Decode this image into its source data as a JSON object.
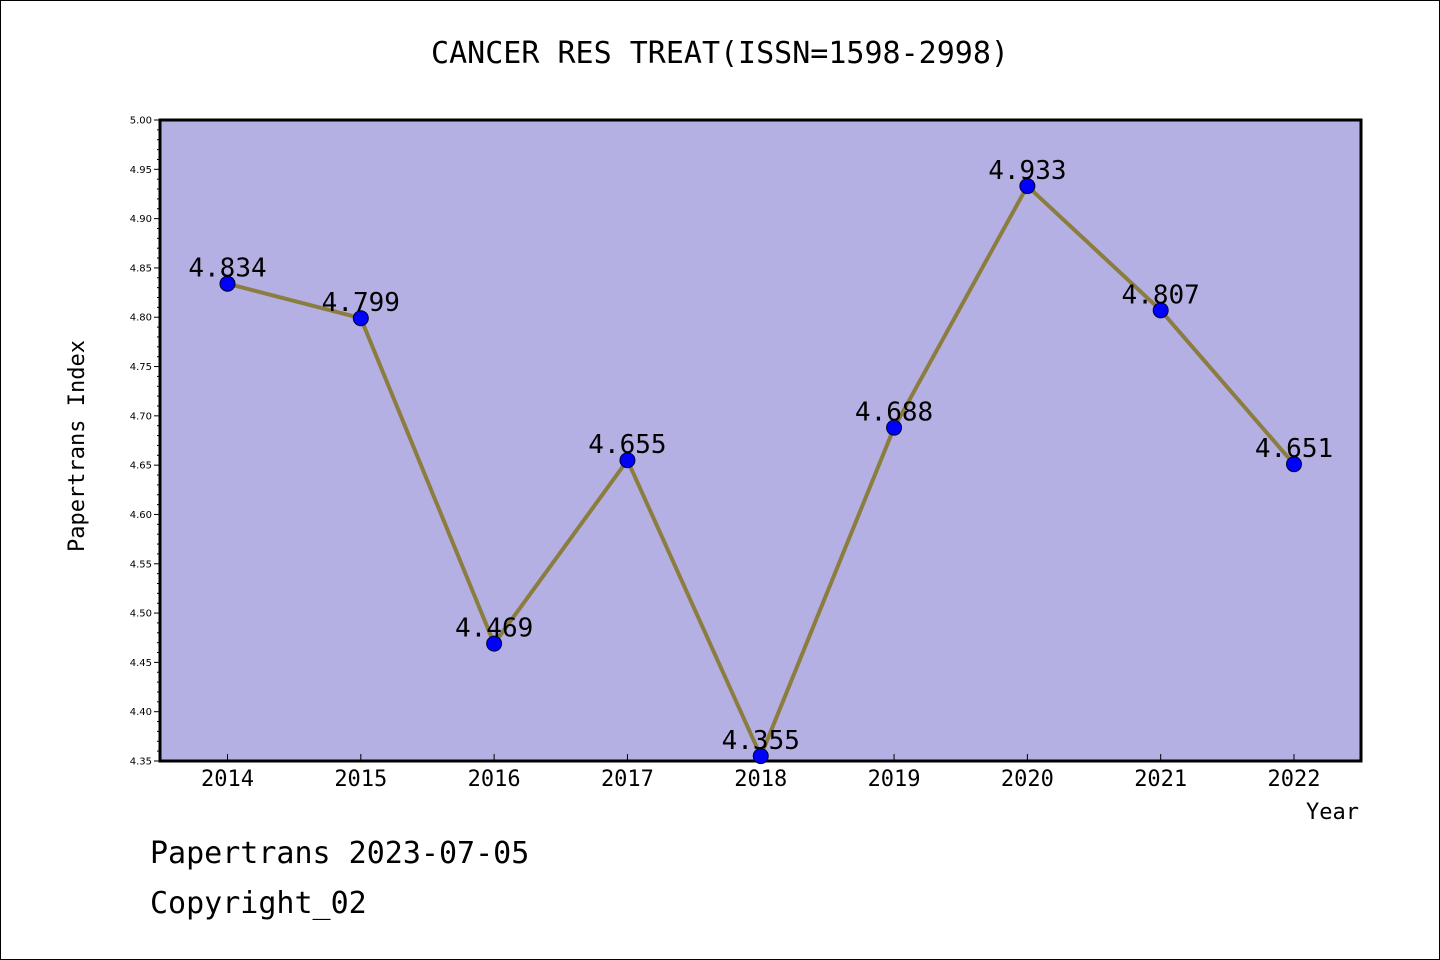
{
  "chart_data": {
    "type": "line",
    "title": "CANCER RES TREAT(ISSN=1598-2998)",
    "xlabel": "Year",
    "ylabel": "Papertrans Index",
    "categories": [
      "2014",
      "2015",
      "2016",
      "2017",
      "2018",
      "2019",
      "2020",
      "2021",
      "2022"
    ],
    "series": [
      {
        "values": [
          4.834,
          4.799,
          4.469,
          4.655,
          4.355,
          4.688,
          4.933,
          4.807,
          4.651
        ],
        "labels": [
          "4.834",
          "4.799",
          "4.469",
          "4.655",
          "4.355",
          "4.688",
          "4.933",
          "4.807",
          "4.651"
        ]
      }
    ],
    "ylim": [
      4.35,
      5.0
    ],
    "yticks": [
      "4.35",
      "4.40",
      "4.45",
      "4.50",
      "4.55",
      "4.60",
      "4.65",
      "4.70",
      "4.75",
      "4.80",
      "4.85",
      "4.90",
      "4.95",
      "5.00"
    ],
    "grid": false,
    "legend": "none",
    "colors": {
      "plot_background": "#b5b0e3",
      "line": "#8b7d3f",
      "marker": "#0000ff"
    }
  },
  "footer": {
    "date_line": "Papertrans 2023-07-05",
    "copyright_line": "Copyright_02"
  }
}
